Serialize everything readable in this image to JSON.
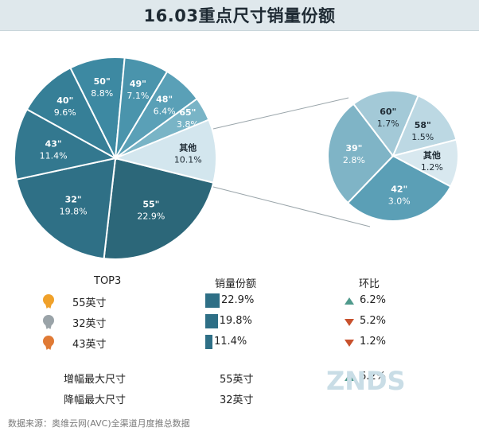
{
  "title": "16.03重点尺寸销量份额",
  "chart_data": {
    "type": "pie",
    "main_pie": {
      "slices": [
        {
          "label": "55\"",
          "value": 22.9,
          "color": "#2c6779"
        },
        {
          "label": "32\"",
          "value": 19.8,
          "color": "#2f7086"
        },
        {
          "label": "43\"",
          "value": 11.4,
          "color": "#33788f"
        },
        {
          "label": "40\"",
          "value": 9.6,
          "color": "#367f97"
        },
        {
          "label": "50\"",
          "value": 8.8,
          "color": "#3d89a2"
        },
        {
          "label": "49\"",
          "value": 7.1,
          "color": "#4a94ac"
        },
        {
          "label": "48\"",
          "value": 6.4,
          "color": "#5aa0b7"
        },
        {
          "label": "65\"",
          "value": 3.8,
          "color": "#79b4c6"
        },
        {
          "label": "其他",
          "value": 10.1,
          "color": "#d3e6ee"
        }
      ],
      "value_labels": [
        "22.9%",
        "19.8%",
        "11.4%",
        "9.6%",
        "8.8%",
        "7.1%",
        "6.4%",
        "3.8%",
        "10.1%"
      ]
    },
    "breakdown_pie": {
      "slices": [
        {
          "label": "42\"",
          "value": 3.0,
          "color": "#5b9fb6"
        },
        {
          "label": "39\"",
          "value": 2.8,
          "color": "#7fb4c6"
        },
        {
          "label": "60\"",
          "value": 1.7,
          "color": "#a3c9d7"
        },
        {
          "label": "58\"",
          "value": 1.5,
          "color": "#bcd8e3"
        },
        {
          "label": "其他",
          "value": 1.2,
          "color": "#d8e8ef"
        }
      ],
      "value_labels": [
        "3.0%",
        "2.8%",
        "1.7%",
        "1.5%",
        "1.2%"
      ]
    }
  },
  "table": {
    "headers": {
      "top3": "TOP3",
      "share": "销量份额",
      "mom": "环比"
    },
    "rows": [
      {
        "medal": "gold-medal-icon",
        "medal_color": "#f0a12a",
        "size": "55英寸",
        "share": 22.9,
        "share_text": "22.9%",
        "trend": "up",
        "mom": "6.2%"
      },
      {
        "medal": "silver-medal-icon",
        "medal_color": "#9aa3a8",
        "size": "32英寸",
        "share": 19.8,
        "share_text": "19.8%",
        "trend": "down",
        "mom": "5.2%"
      },
      {
        "medal": "bronze-medal-icon",
        "medal_color": "#e07a35",
        "size": "43英寸",
        "share": 11.4,
        "share_text": "11.4%",
        "trend": "down",
        "mom": "1.2%"
      }
    ],
    "max_increase": {
      "label": "增幅最大尺寸",
      "size": "55英寸",
      "trend": "up",
      "value": "6.2%"
    },
    "max_decrease": {
      "label": "降幅最大尺寸",
      "size": "32英寸"
    }
  },
  "footer": "数据来源：奥维云网(AVC)全渠道月度推总数据",
  "watermark": "ZNDS",
  "colors": {
    "up": "#4f9a8c",
    "down": "#c8512d",
    "bar": "#2e6f86"
  }
}
